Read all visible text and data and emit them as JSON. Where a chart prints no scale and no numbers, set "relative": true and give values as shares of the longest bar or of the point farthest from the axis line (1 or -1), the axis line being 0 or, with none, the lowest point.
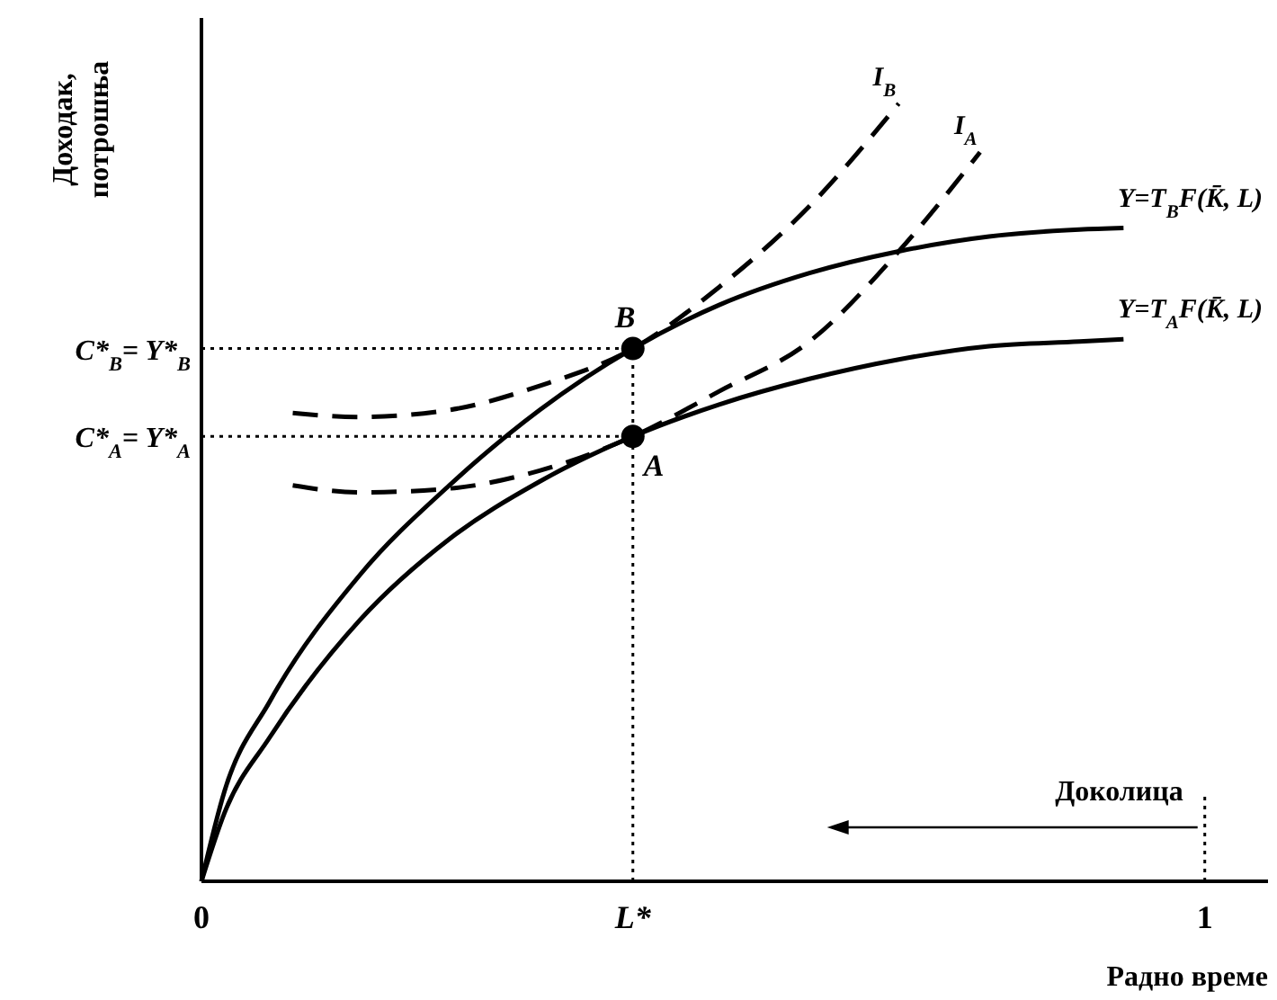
{
  "chart_data": {
    "type": "line",
    "relative": true,
    "xlabel": "Радно време",
    "ylabel": "Доходак, потрошња",
    "xlim": [
      0,
      1.063
    ],
    "xticks": [
      0,
      {
        "value": 0.43,
        "label": "L*"
      },
      1
    ],
    "grid": false,
    "series": [
      {
        "name": "Y=T$_{B}$F(K̄, L)",
        "color": "#000000",
        "line_style": "solid",
        "x": [
          0,
          0.023,
          0.068,
          0.158,
          0.247,
          0.337,
          0.43,
          0.516,
          0.606,
          0.695,
          0.785,
          0.875,
          0.919
        ],
        "values": [
          0,
          0.116,
          0.231,
          0.394,
          0.509,
          0.606,
          0.685,
          0.741,
          0.782,
          0.81,
          0.829,
          0.838,
          0.84
        ]
      },
      {
        "name": "Y=T$_{A}$F(K̄, L)",
        "color": "#000000",
        "line_style": "solid",
        "x": [
          0,
          0.023,
          0.068,
          0.158,
          0.247,
          0.337,
          0.43,
          0.516,
          0.606,
          0.695,
          0.785,
          0.875,
          0.919
        ],
        "values": [
          0,
          0.088,
          0.185,
          0.336,
          0.44,
          0.514,
          0.572,
          0.613,
          0.646,
          0.671,
          0.688,
          0.694,
          0.697
        ]
      },
      {
        "name": "I$_{B}$",
        "color": "#000000",
        "line_style": "dashed",
        "x": [
          0.091,
          0.158,
          0.247,
          0.337,
          0.43,
          0.516,
          0.606,
          0.695
        ],
        "values": [
          0.602,
          0.597,
          0.606,
          0.637,
          0.685,
          0.764,
          0.868,
          1.0
        ]
      },
      {
        "name": "I$_{A}$",
        "color": "#000000",
        "line_style": "dashed",
        "x": [
          0.091,
          0.158,
          0.247,
          0.337,
          0.43,
          0.516,
          0.606,
          0.695,
          0.776
        ],
        "values": [
          0.509,
          0.5,
          0.505,
          0.528,
          0.572,
          0.63,
          0.694,
          0.81,
          0.9375
        ]
      },
      {
        "type": "scatter",
        "color": "#000000",
        "marker": "circle",
        "x": [
          0.43,
          0.43
        ],
        "values": [
          0.685,
          0.572
        ]
      }
    ],
    "ref_lines": [
      {
        "axis": "y",
        "value": 0.685,
        "label": "C*$_{B}$= Y*$_{B}$",
        "line_style": "dotted"
      },
      {
        "axis": "y",
        "value": 0.572,
        "label": "C*$_{A}$= Y*$_{A}$",
        "line_style": "dotted"
      },
      {
        "axis": "x",
        "value": 0.43,
        "line_style": "dotted"
      }
    ],
    "annotations": [
      {
        "text": "B",
        "x": 0.43,
        "y": 0.685
      },
      {
        "text": "A",
        "x": 0.43,
        "y": 0.572
      },
      "Доколица"
    ]
  }
}
